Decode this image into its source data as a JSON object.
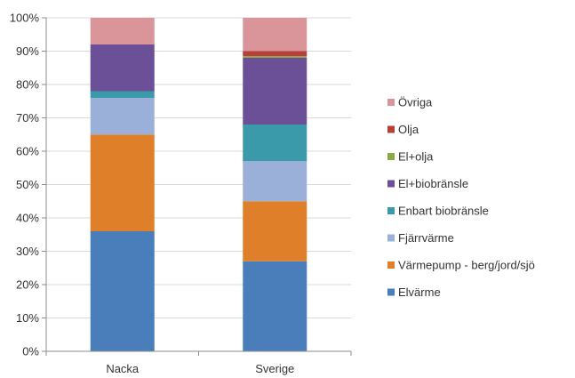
{
  "chart_data": {
    "type": "bar",
    "stacked": true,
    "percent_stacked": true,
    "categories": [
      "Nacka",
      "Sverige"
    ],
    "series": [
      {
        "name": "Elvärme",
        "color": "#4a7ebb",
        "values": [
          36,
          27
        ]
      },
      {
        "name": "Värmepump - berg/jord/sjö",
        "color": "#e07f2a",
        "values": [
          29,
          18
        ]
      },
      {
        "name": "Fjärrvärme",
        "color": "#9bb0d8",
        "values": [
          11,
          12
        ]
      },
      {
        "name": "Enbart biobränsle",
        "color": "#3a9aa9",
        "values": [
          2,
          11
        ]
      },
      {
        "name": "El+biobränsle",
        "color": "#6b4f97",
        "values": [
          14,
          20
        ]
      },
      {
        "name": "El+olja",
        "color": "#8aa84a",
        "values": [
          0,
          0.5
        ]
      },
      {
        "name": "Olja",
        "color": "#b8403a",
        "values": [
          0,
          1.5
        ]
      },
      {
        "name": "Övriga",
        "color": "#d9959a",
        "values": [
          8,
          10
        ]
      }
    ],
    "yticks": [
      "0%",
      "10%",
      "20%",
      "30%",
      "40%",
      "50%",
      "60%",
      "70%",
      "80%",
      "90%",
      "100%"
    ],
    "ylim": [
      0,
      100
    ],
    "grid": true,
    "legend_position": "right"
  }
}
